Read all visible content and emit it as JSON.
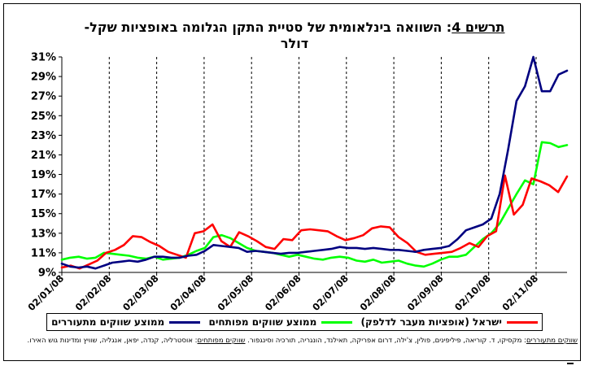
{
  "title": {
    "prefix": "תרשים 4",
    "text": ": השוואה בינלאומית של סטיית התקן הגלומה באופציות שקל-",
    "line2": "דולר"
  },
  "chart_data": {
    "type": "line",
    "title": "תרשים 4: השוואה בינלאומית של סטיית התקן הגלומה באופציות שקל-דולר",
    "xlabel": "",
    "ylabel": "",
    "ylim": [
      9,
      31
    ],
    "yticks": [
      "9%",
      "11%",
      "13%",
      "15%",
      "17%",
      "19%",
      "21%",
      "23%",
      "25%",
      "27%",
      "29%",
      "31%"
    ],
    "xticks": [
      "02/01/08",
      "02/02/08",
      "02/03/08",
      "02/04/08",
      "02/05/08",
      "02/06/08",
      "02/07/08",
      "02/08/08",
      "02/09/08",
      "02/10/08",
      "02/11/08"
    ],
    "grid": "vertical dashed",
    "legend_position": "bottom",
    "series": [
      {
        "name": "ממוצע שווקים מתעוררים",
        "color": "#000080",
        "values": [
          9.9,
          9.6,
          9.5,
          9.6,
          9.4,
          9.7,
          10.0,
          10.1,
          10.2,
          10.1,
          10.3,
          10.6,
          10.6,
          10.5,
          10.5,
          10.7,
          10.8,
          11.2,
          11.8,
          11.7,
          11.6,
          11.5,
          11.1,
          11.2,
          11.1,
          11.0,
          10.9,
          11.0,
          11.0,
          11.1,
          11.2,
          11.3,
          11.4,
          11.6,
          11.5,
          11.5,
          11.4,
          11.5,
          11.4,
          11.3,
          11.3,
          11.2,
          11.1,
          11.3,
          11.4,
          11.5,
          11.7,
          12.4,
          13.3,
          13.6,
          13.9,
          14.5,
          17.0,
          21.5,
          26.5,
          28.0,
          31.0,
          27.5,
          27.5,
          29.2,
          29.6
        ]
      },
      {
        "name": "ממוצע שווקים מפותחים",
        "color": "#00ff00",
        "values": [
          10.3,
          10.5,
          10.6,
          10.4,
          10.5,
          11.0,
          10.9,
          10.8,
          10.7,
          10.5,
          10.4,
          10.6,
          10.3,
          10.4,
          10.5,
          10.8,
          11.2,
          11.5,
          12.6,
          12.8,
          12.5,
          12.0,
          11.5,
          11.2,
          11.1,
          11.0,
          10.8,
          10.6,
          10.8,
          10.6,
          10.4,
          10.3,
          10.5,
          10.6,
          10.5,
          10.2,
          10.1,
          10.3,
          10.0,
          10.1,
          10.2,
          9.9,
          9.7,
          9.6,
          9.9,
          10.3,
          10.6,
          10.6,
          10.8,
          11.6,
          12.4,
          13.0,
          14.0,
          15.5,
          17.0,
          18.4,
          18.0,
          22.3,
          22.2,
          21.8,
          22.0
        ]
      },
      {
        "name": "ישראל (אופציות מעבר לדלפק)",
        "color": "#ff0000",
        "values": [
          9.5,
          9.7,
          9.4,
          9.8,
          10.2,
          11.0,
          11.3,
          11.8,
          12.7,
          12.6,
          12.1,
          11.7,
          11.1,
          10.8,
          10.5,
          13.0,
          13.2,
          13.9,
          12.2,
          11.6,
          13.1,
          12.7,
          12.2,
          11.6,
          11.4,
          12.4,
          12.3,
          13.3,
          13.4,
          13.3,
          13.2,
          12.7,
          12.3,
          12.5,
          12.8,
          13.5,
          13.7,
          13.6,
          12.6,
          12.0,
          11.1,
          10.8,
          10.9,
          11.0,
          11.1,
          11.5,
          12.0,
          11.6,
          12.7,
          13.2,
          18.9,
          14.9,
          15.9,
          18.6,
          18.3,
          17.9,
          17.2,
          18.8
        ]
      }
    ]
  },
  "legend": {
    "em": "ממוצע שווקים מתעוררים",
    "dev": "ממוצע שווקים מפותחים",
    "isr": "ישראל (אופציות מעבר לדלפק)"
  },
  "notes": {
    "em_label": "שווקים מתעוררים",
    "em_text": ": מקסיקו, ד. קוריאה, פיליפינים, פולין, צ'ילה, דרום אפריקה, תאילנד, הונגריה, תורכיה וסינגפור.",
    "dev_label": "שווקים מפותחים",
    "dev_text": ": אוסטרליה, קנדה, יפאן, אנגליה, שוויץ ומדינות גוש האירו."
  }
}
